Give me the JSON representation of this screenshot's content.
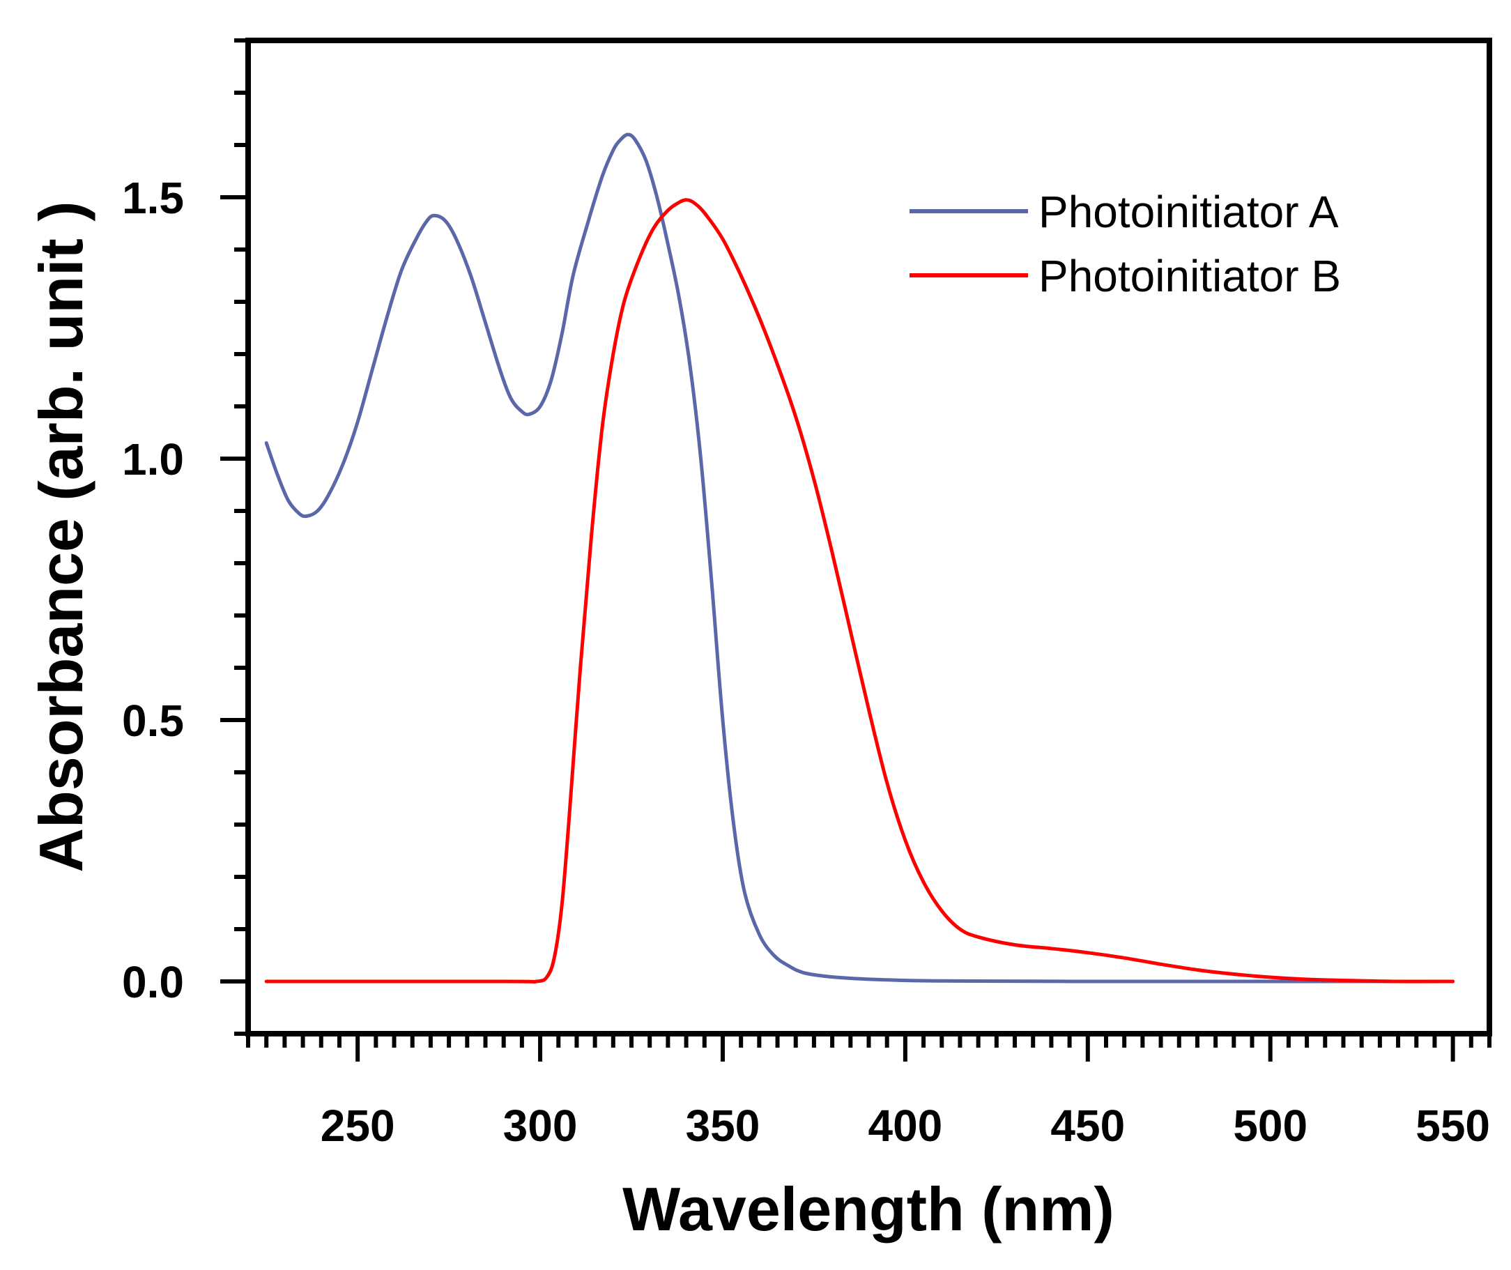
{
  "chart_data": {
    "type": "line",
    "xlabel": "Wavelength (nm)",
    "ylabel": "Absorbance (arb. unit  )",
    "xlim": [
      220,
      560
    ],
    "ylim": [
      -0.1,
      1.8
    ],
    "x_ticks": [
      250,
      300,
      350,
      400,
      450,
      500,
      550
    ],
    "x_tick_labels": [
      "250",
      "300",
      "350",
      "400",
      "450",
      "500",
      "550"
    ],
    "x_minor_step": 5,
    "y_ticks": [
      0.0,
      0.5,
      1.0,
      1.5
    ],
    "y_tick_labels": [
      "0.0",
      "0.5",
      "1.0",
      "1.5"
    ],
    "y_minor_step": 0.1,
    "grid": false,
    "legend_position": "top-right",
    "series": [
      {
        "name": "Photoinitiator A",
        "color": "#5b67a9",
        "points": [
          [
            225,
            1.03
          ],
          [
            228,
            0.97
          ],
          [
            231,
            0.92
          ],
          [
            234,
            0.895
          ],
          [
            236,
            0.89
          ],
          [
            239,
            0.9
          ],
          [
            242,
            0.93
          ],
          [
            246,
            0.99
          ],
          [
            250,
            1.07
          ],
          [
            254,
            1.17
          ],
          [
            258,
            1.27
          ],
          [
            262,
            1.36
          ],
          [
            266,
            1.42
          ],
          [
            269,
            1.455
          ],
          [
            271,
            1.465
          ],
          [
            274,
            1.455
          ],
          [
            277,
            1.42
          ],
          [
            281,
            1.35
          ],
          [
            285,
            1.26
          ],
          [
            289,
            1.17
          ],
          [
            292,
            1.115
          ],
          [
            295,
            1.09
          ],
          [
            297,
            1.085
          ],
          [
            300,
            1.1
          ],
          [
            303,
            1.15
          ],
          [
            306,
            1.24
          ],
          [
            309,
            1.35
          ],
          [
            313,
            1.45
          ],
          [
            317,
            1.54
          ],
          [
            320,
            1.59
          ],
          [
            322,
            1.61
          ],
          [
            324,
            1.62
          ],
          [
            326,
            1.61
          ],
          [
            329,
            1.57
          ],
          [
            332,
            1.5
          ],
          [
            335,
            1.41
          ],
          [
            338,
            1.31
          ],
          [
            341,
            1.18
          ],
          [
            344,
            1.0
          ],
          [
            347,
            0.76
          ],
          [
            350,
            0.5
          ],
          [
            353,
            0.3
          ],
          [
            356,
            0.17
          ],
          [
            360,
            0.09
          ],
          [
            364,
            0.05
          ],
          [
            368,
            0.03
          ],
          [
            372,
            0.017
          ],
          [
            378,
            0.01
          ],
          [
            385,
            0.006
          ],
          [
            395,
            0.003
          ],
          [
            410,
            0.001
          ],
          [
            450,
            0.0
          ],
          [
            500,
            0.0
          ],
          [
            550,
            0.0
          ]
        ]
      },
      {
        "name": "Photoinitiator B",
        "color": "#ff0000",
        "points": [
          [
            225,
            0.0
          ],
          [
            290,
            0.0
          ],
          [
            299,
            0.0
          ],
          [
            302,
            0.01
          ],
          [
            304,
            0.05
          ],
          [
            306,
            0.15
          ],
          [
            308,
            0.32
          ],
          [
            311,
            0.6
          ],
          [
            314,
            0.85
          ],
          [
            317,
            1.06
          ],
          [
            320,
            1.2
          ],
          [
            323,
            1.3
          ],
          [
            327,
            1.38
          ],
          [
            331,
            1.44
          ],
          [
            335,
            1.475
          ],
          [
            338,
            1.49
          ],
          [
            340,
            1.495
          ],
          [
            342,
            1.49
          ],
          [
            345,
            1.47
          ],
          [
            350,
            1.42
          ],
          [
            355,
            1.35
          ],
          [
            360,
            1.27
          ],
          [
            365,
            1.18
          ],
          [
            370,
            1.08
          ],
          [
            375,
            0.96
          ],
          [
            380,
            0.82
          ],
          [
            385,
            0.67
          ],
          [
            390,
            0.52
          ],
          [
            395,
            0.38
          ],
          [
            400,
            0.27
          ],
          [
            405,
            0.19
          ],
          [
            410,
            0.135
          ],
          [
            415,
            0.1
          ],
          [
            420,
            0.085
          ],
          [
            430,
            0.07
          ],
          [
            440,
            0.063
          ],
          [
            450,
            0.055
          ],
          [
            460,
            0.045
          ],
          [
            470,
            0.033
          ],
          [
            480,
            0.022
          ],
          [
            490,
            0.014
          ],
          [
            500,
            0.008
          ],
          [
            510,
            0.004
          ],
          [
            520,
            0.002
          ],
          [
            535,
            0.0
          ],
          [
            550,
            0.0
          ]
        ]
      }
    ]
  }
}
